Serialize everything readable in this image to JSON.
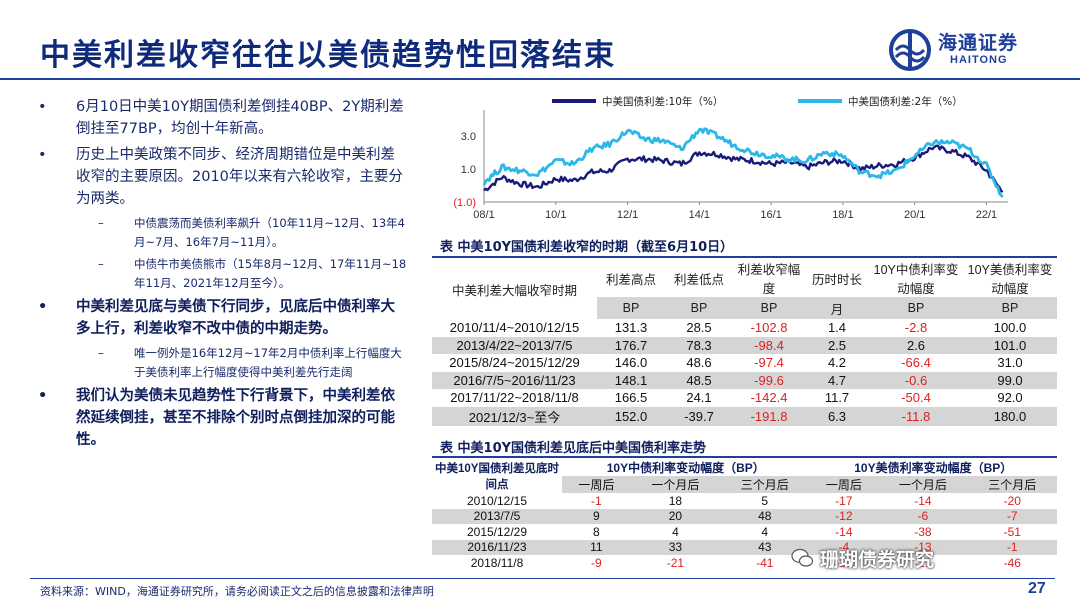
{
  "title": "中美利差收窄往往以美债趋势性回落结束",
  "logo": {
    "cn": "海通证券",
    "en": "HAITONG"
  },
  "bullets": [
    {
      "text": "6月10日中美10Y期国债利差倒挂40BP、2Y期利差倒挂至77BP，均创十年新高。",
      "bold": false
    },
    {
      "text": "历史上中美政策不同步、经济周期错位是中美利差收窄的主要原因。2010年以来有六轮收窄，主要分为两类。",
      "bold": false
    },
    {
      "sub": "中债震荡而美债利率飙升（10年11月~12月、13年4月~7月、16年7月~11月）。"
    },
    {
      "sub": "中债牛市美债熊市（15年8月~12月、17年11月~18年11月、2021年12月至今）。"
    },
    {
      "text": "中美利差见底与美债下行同步，见底后中债利率大多上行，利差收窄不改中债的中期走势。",
      "bold": true
    },
    {
      "sub": "唯一例外是16年12月~17年2月中债利率上行幅度大于美债利率上行幅度使得中美利差先行走阔"
    },
    {
      "text": "我们认为美债未见趋势性下行背景下，中美利差依然延续倒挂，甚至不排除个别时点倒挂加深的可能性。",
      "bold": true
    }
  ],
  "chart_data": {
    "type": "line",
    "legend": [
      "中美国债利差:10年（%）",
      "中美国债利差:2年（%）"
    ],
    "series": [
      {
        "name": "中美国债利差:10年（%）",
        "color": "#1a1a7a",
        "x": [
          2008.0,
          2008.5,
          2009.0,
          2009.5,
          2010.0,
          2010.5,
          2011.0,
          2011.5,
          2012.0,
          2012.5,
          2013.0,
          2013.5,
          2014.0,
          2014.5,
          2015.0,
          2015.5,
          2016.0,
          2016.5,
          2017.0,
          2017.5,
          2018.0,
          2018.5,
          2019.0,
          2019.5,
          2020.0,
          2020.5,
          2021.0,
          2021.5,
          2022.0,
          2022.45
        ],
        "y": [
          -0.3,
          0.5,
          0.1,
          -0.1,
          0.4,
          0.3,
          0.8,
          0.9,
          1.6,
          1.6,
          1.5,
          1.3,
          2.0,
          1.9,
          1.6,
          1.5,
          1.3,
          1.4,
          1.1,
          1.4,
          1.5,
          1.0,
          1.2,
          1.3,
          1.7,
          2.3,
          2.1,
          1.7,
          0.9,
          -0.4
        ]
      },
      {
        "name": "中美国债利差:2年（%）",
        "color": "#2bb8e8",
        "x": [
          2008.0,
          2008.5,
          2009.0,
          2009.5,
          2010.0,
          2010.5,
          2011.0,
          2011.5,
          2012.0,
          2012.5,
          2013.0,
          2013.5,
          2014.0,
          2014.5,
          2015.0,
          2015.5,
          2016.0,
          2016.5,
          2017.0,
          2017.5,
          2018.0,
          2018.5,
          2019.0,
          2019.5,
          2020.0,
          2020.5,
          2021.0,
          2021.5,
          2022.0,
          2022.45
        ],
        "y": [
          0.2,
          1.1,
          0.9,
          0.7,
          1.5,
          1.3,
          2.2,
          2.5,
          3.3,
          2.8,
          2.7,
          2.2,
          3.4,
          3.0,
          2.4,
          2.0,
          1.8,
          1.6,
          1.5,
          2.0,
          1.8,
          0.8,
          0.6,
          0.9,
          1.8,
          2.6,
          2.6,
          2.2,
          1.2,
          -0.7
        ]
      }
    ],
    "xticks": [
      "08/1",
      "10/1",
      "12/1",
      "14/1",
      "16/1",
      "18/1",
      "20/1",
      "22/1"
    ],
    "xtick_vals": [
      2008,
      2010,
      2012,
      2014,
      2016,
      2018,
      2020,
      2022
    ],
    "yticks": [
      "3.0",
      "1.0",
      "(1.0)"
    ],
    "ytick_vals": [
      3,
      1,
      -1
    ],
    "xlim": [
      2008,
      2022.6
    ],
    "ylim": [
      -1,
      4.2
    ]
  },
  "table1": {
    "title": "表 中美10Y国债利差收窄的时期（截至6月10日）",
    "headers": [
      "中美利差大幅收窄时期",
      "利差高点",
      "利差低点",
      "利差收窄幅度",
      "历时时长",
      "10Y中债利率变动幅度",
      "10Y美债利率变动幅度"
    ],
    "units": [
      "BP",
      "BP",
      "BP",
      "月",
      "BP",
      "BP"
    ],
    "rows": [
      [
        "2010/11/4~2010/12/15",
        "131.3",
        "28.5",
        "-102.8",
        "1.4",
        "-2.8",
        "100.0"
      ],
      [
        "2013/4/22~2013/7/5",
        "176.7",
        "78.3",
        "-98.4",
        "2.5",
        "2.6",
        "101.0"
      ],
      [
        "2015/8/24~2015/12/29",
        "146.0",
        "48.6",
        "-97.4",
        "4.2",
        "-66.4",
        "31.0"
      ],
      [
        "2016/7/5~2016/11/23",
        "148.1",
        "48.5",
        "-99.6",
        "4.7",
        "-0.6",
        "99.0"
      ],
      [
        "2017/11/22~2018/11/8",
        "166.5",
        "24.1",
        "-142.4",
        "11.7",
        "-50.4",
        "92.0"
      ],
      [
        "2021/12/3~至今",
        "152.0",
        "-39.7",
        "-191.8",
        "6.3",
        "-11.8",
        "180.0"
      ]
    ]
  },
  "table2": {
    "title": "表 中美10Y国债利差见底后中美国债利率走势",
    "header_left": "中美10Y国债利差见底时间点",
    "group_cn": "10Y中债利率变动幅度（BP）",
    "group_us": "10Y美债利率变动幅度（BP）",
    "subs": [
      "一周后",
      "一个月后",
      "三个月后",
      "一周后",
      "一个月后",
      "三个月后"
    ],
    "rows": [
      [
        "2010/12/15",
        "-1",
        "18",
        "5",
        "-17",
        "-14",
        "-20"
      ],
      [
        "2013/7/5",
        "9",
        "20",
        "48",
        "-12",
        "-6",
        "-7"
      ],
      [
        "2015/12/29",
        "8",
        "4",
        "4",
        "-14",
        "-38",
        "-51"
      ],
      [
        "2016/11/23",
        "11",
        "33",
        "43",
        "-4",
        "-13",
        "-1"
      ],
      [
        "2018/11/8",
        "-9",
        "-21",
        "-41",
        "-13",
        "-21",
        "-46"
      ]
    ]
  },
  "footer": "资料来源：WIND，海通证券研究所，请务必阅读正文之后的信息披露和法律声明",
  "page_number": "27",
  "watermark": "珊瑚债券研究"
}
